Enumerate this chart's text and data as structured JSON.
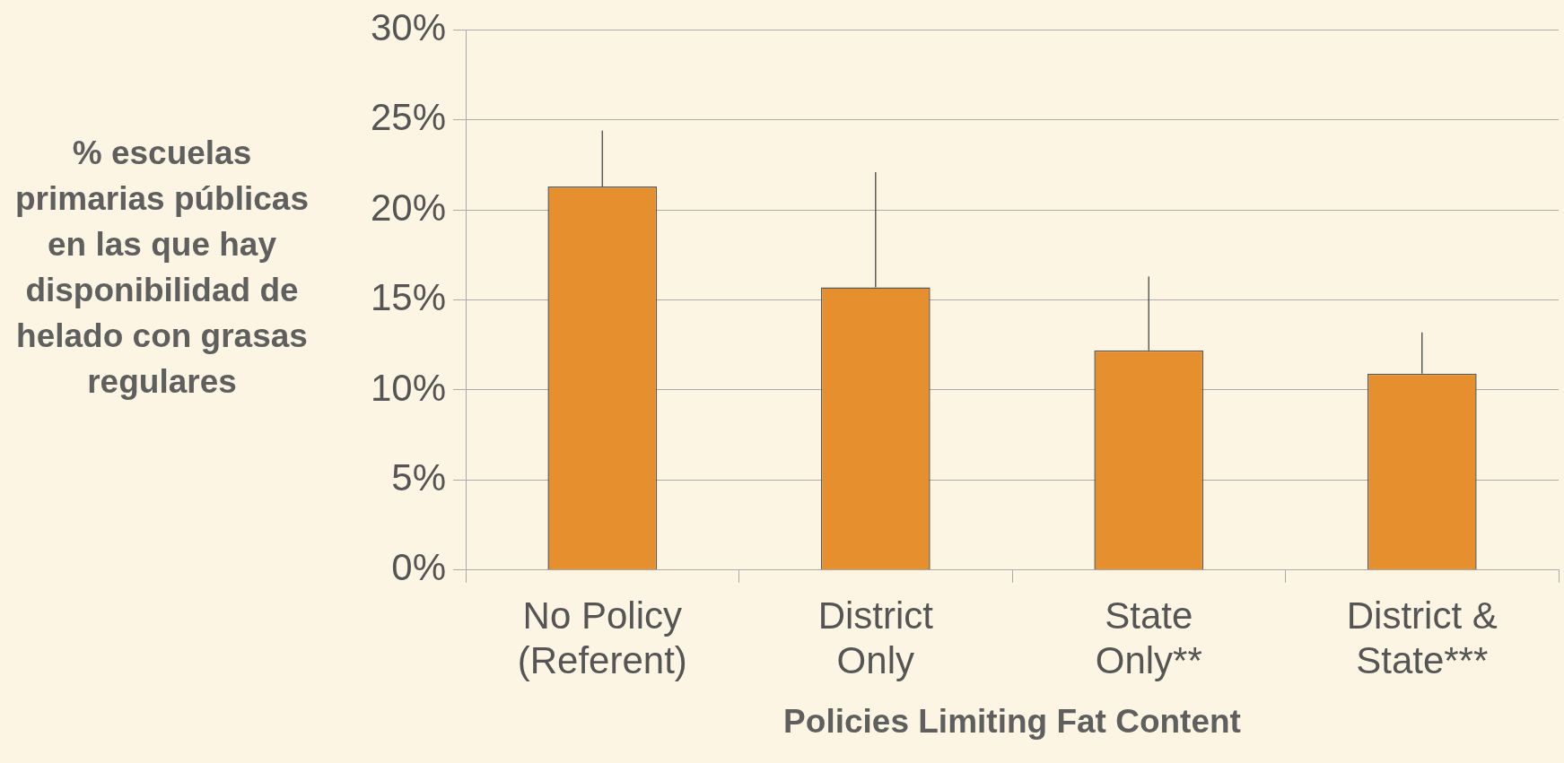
{
  "chart_data": {
    "type": "bar",
    "xlabel": "Policies Limiting Fat Content",
    "ylabel": "% escuelas primarias públicas en las que hay disponibilidad de helado con grasas regulares",
    "categories": [
      "No Policy (Referent)",
      "District Only",
      "State Only**",
      "District & State***"
    ],
    "values": [
      21.3,
      15.7,
      12.2,
      10.9
    ],
    "color": "#e68f2e",
    "errors": [
      [
        21.3,
        24.4
      ],
      [
        15.7,
        22.1
      ],
      [
        12.2,
        16.3
      ],
      [
        10.9,
        13.2
      ]
    ],
    "ylim": [
      0,
      30
    ],
    "yticks": [
      {
        "value": 0,
        "label": "0%"
      },
      {
        "value": 5,
        "label": "5%"
      },
      {
        "value": 10,
        "label": "10%"
      },
      {
        "value": 15,
        "label": "15%"
      },
      {
        "value": 20,
        "label": "20%"
      },
      {
        "value": 25,
        "label": "25%"
      },
      {
        "value": 30,
        "label": "30%"
      }
    ],
    "grid": "y",
    "legend": false
  }
}
